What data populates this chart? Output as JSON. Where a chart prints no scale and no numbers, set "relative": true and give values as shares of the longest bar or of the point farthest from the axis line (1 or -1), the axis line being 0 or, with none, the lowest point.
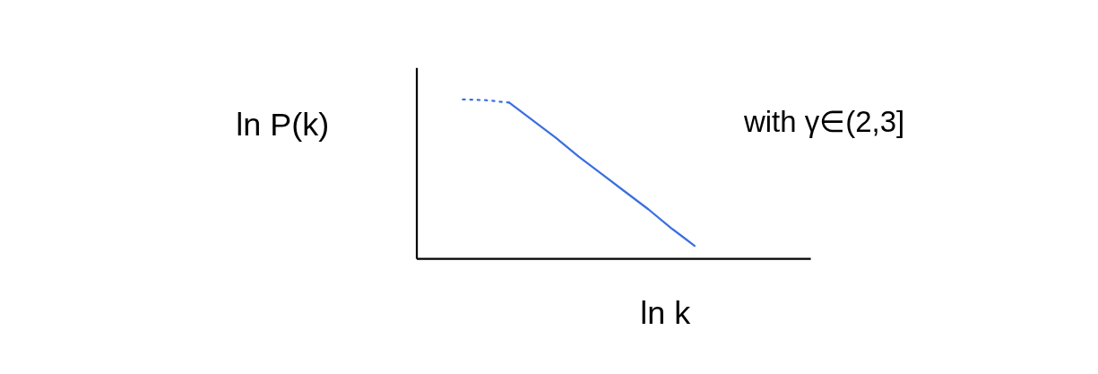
{
  "chart_data": {
    "type": "line",
    "relative": true,
    "xlabel": "ln k",
    "ylabel": "ln P(k)",
    "annotations": [
      "with γ∈(2,3]"
    ],
    "categories": [
      null,
      null,
      null,
      null,
      null,
      null,
      null,
      null,
      null,
      null,
      null,
      null,
      null,
      null,
      null,
      null,
      null,
      null
    ],
    "series": [
      {
        "color": "#3a6fe0",
        "line_style": "dotted",
        "values": [
          null,
          null,
          1,
          0.995,
          0.98,
          null,
          null,
          null,
          null,
          null,
          null,
          null,
          null,
          null,
          null,
          null,
          null,
          null
        ]
      },
      {
        "color": "#3a6fe0",
        "line_style": "solid",
        "values": [
          null,
          null,
          null,
          null,
          0.98,
          0.87,
          0.76,
          0.64,
          0.53,
          0.42,
          0.31,
          0.19,
          0.08,
          null,
          null,
          null,
          null,
          null
        ]
      }
    ],
    "tick_labels": false,
    "grid": false
  }
}
